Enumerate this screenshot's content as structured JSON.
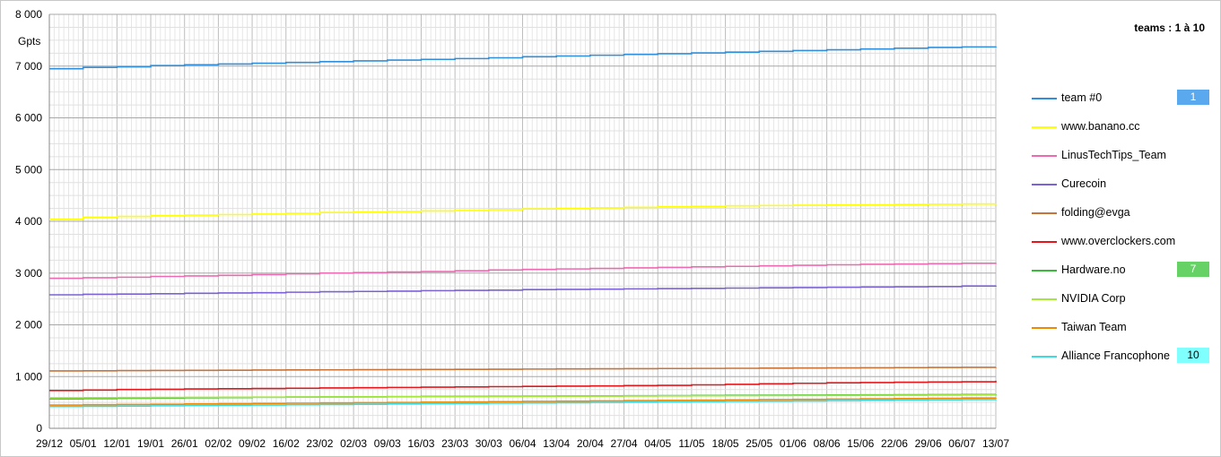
{
  "header": {
    "range_label": "teams : 1 à 10"
  },
  "chart_data": {
    "type": "line",
    "ylabel": "Gpts",
    "ylim": [
      0,
      8000
    ],
    "yticks": [
      "0",
      "1 000",
      "2 000",
      "3 000",
      "4 000",
      "5 000",
      "6 000",
      "7 000",
      "8 000"
    ],
    "grid": true,
    "legend_position": "right",
    "categories": [
      "29/12",
      "05/01",
      "12/01",
      "19/01",
      "26/01",
      "02/02",
      "09/02",
      "16/02",
      "23/02",
      "02/03",
      "09/03",
      "16/03",
      "23/03",
      "30/03",
      "06/04",
      "13/04",
      "20/04",
      "27/04",
      "04/05",
      "11/05",
      "18/05",
      "25/05",
      "01/06",
      "08/06",
      "15/06",
      "22/06",
      "29/06",
      "06/07",
      "13/07"
    ],
    "series": [
      {
        "name": "team #0",
        "color": "#2f8fdb",
        "rank": "1",
        "rank_color": "#5aa8ee",
        "values": [
          6950,
          6975,
          6985,
          7010,
          7025,
          7040,
          7055,
          7070,
          7085,
          7100,
          7115,
          7130,
          7145,
          7160,
          7180,
          7195,
          7210,
          7225,
          7240,
          7255,
          7270,
          7285,
          7300,
          7315,
          7330,
          7345,
          7360,
          7370,
          7380
        ]
      },
      {
        "name": "www.banano.cc",
        "color": "#ffff00",
        "values": [
          4040,
          4080,
          4095,
          4110,
          4120,
          4130,
          4140,
          4155,
          4170,
          4180,
          4190,
          4200,
          4210,
          4225,
          4240,
          4250,
          4260,
          4270,
          4280,
          4290,
          4300,
          4305,
          4310,
          4315,
          4320,
          4325,
          4330,
          4335,
          4340
        ]
      },
      {
        "name": "LinusTechTips_Team",
        "color": "#ee6ab0",
        "values": [
          2900,
          2910,
          2920,
          2935,
          2945,
          2955,
          2970,
          2985,
          3000,
          3010,
          3020,
          3030,
          3045,
          3060,
          3070,
          3080,
          3090,
          3100,
          3110,
          3120,
          3130,
          3140,
          3150,
          3160,
          3170,
          3175,
          3180,
          3190,
          3200
        ]
      },
      {
        "name": "Curecoin",
        "color": "#7b62d6",
        "values": [
          2580,
          2590,
          2595,
          2600,
          2610,
          2615,
          2620,
          2630,
          2640,
          2645,
          2650,
          2660,
          2665,
          2670,
          2680,
          2685,
          2690,
          2695,
          2700,
          2705,
          2710,
          2715,
          2720,
          2725,
          2730,
          2735,
          2740,
          2750,
          2760
        ]
      },
      {
        "name": "folding@evga",
        "color": "#c87438",
        "values": [
          1110,
          1112,
          1115,
          1118,
          1120,
          1123,
          1126,
          1128,
          1130,
          1133,
          1136,
          1138,
          1140,
          1142,
          1145,
          1148,
          1150,
          1153,
          1156,
          1158,
          1160,
          1163,
          1166,
          1168,
          1170,
          1173,
          1176,
          1178,
          1180
        ]
      },
      {
        "name": "www.overclockers.com",
        "color": "#e8161a",
        "values": [
          730,
          740,
          750,
          755,
          760,
          765,
          770,
          775,
          780,
          785,
          790,
          795,
          800,
          805,
          810,
          815,
          820,
          825,
          830,
          840,
          850,
          860,
          870,
          880,
          885,
          890,
          895,
          900,
          920
        ]
      },
      {
        "name": "Hardware.no",
        "color": "#3bb93b",
        "rank": "7",
        "rank_color": "#66d266",
        "values": [
          570,
          575,
          580,
          585,
          590,
          595,
          600,
          605,
          608,
          610,
          612,
          615,
          618,
          620,
          622,
          625,
          627,
          630,
          632,
          635,
          637,
          640,
          642,
          644,
          646,
          648,
          650,
          652,
          655
        ]
      },
      {
        "name": "NVIDIA Corp",
        "color": "#a6e83a",
        "values": [
          590,
          592,
          594,
          596,
          598,
          600,
          602,
          604,
          606,
          608,
          610,
          612,
          614,
          616,
          618,
          620,
          622,
          624,
          626,
          628,
          630,
          632,
          634,
          636,
          638,
          640,
          642,
          644,
          646
        ]
      },
      {
        "name": "Taiwan Team",
        "color": "#ef8a00",
        "values": [
          450,
          455,
          460,
          465,
          470,
          475,
          480,
          485,
          490,
          495,
          500,
          505,
          510,
          515,
          520,
          525,
          530,
          535,
          540,
          545,
          550,
          555,
          560,
          565,
          570,
          575,
          580,
          585,
          590
        ]
      },
      {
        "name": "Alliance Francophone",
        "color": "#3ddbe0",
        "rank": "10",
        "rank_color": "#80ffff",
        "values": [
          420,
          425,
          430,
          435,
          440,
          445,
          450,
          455,
          460,
          465,
          470,
          475,
          480,
          485,
          490,
          495,
          500,
          505,
          510,
          515,
          520,
          525,
          530,
          535,
          540,
          545,
          550,
          555,
          560
        ]
      }
    ]
  }
}
